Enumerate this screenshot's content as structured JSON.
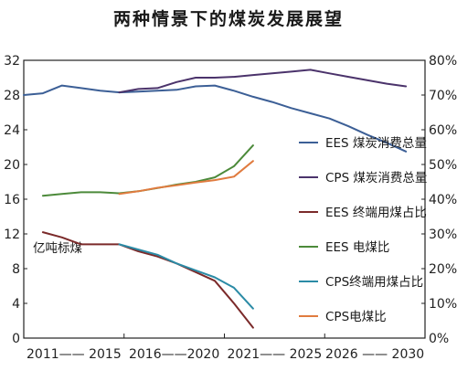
{
  "chart_data": {
    "type": "line",
    "title": "两种情景下的煤炭发展展望",
    "ylabel": "亿吨标煤",
    "y_left_lim": [
      0,
      32
    ],
    "y_right_lim": [
      0,
      80
    ],
    "y_left_ticks": [
      "0",
      "4",
      "8",
      "12",
      "16",
      "20",
      "24",
      "28",
      "32"
    ],
    "y_right_ticks": [
      "0%",
      "10%",
      "20%",
      "30%",
      "40%",
      "50%",
      "60%",
      "70%",
      "80%"
    ],
    "x_ticks": [
      "2011—— 2015",
      "2016——2020",
      "2021—— 2025",
      "2026 —— 2030"
    ],
    "x_range": [
      2010,
      2031
    ],
    "grid": false,
    "legend_position": "right",
    "series": [
      {
        "name": "EES 煤炭消费总量",
        "axis": "left",
        "color": "#3c5f96",
        "x": [
          2010,
          2011,
          2012,
          2013,
          2014,
          2015,
          2016,
          2017,
          2018,
          2019,
          2020,
          2021,
          2022,
          2023,
          2024,
          2025,
          2026,
          2027,
          2028,
          2029,
          2030
        ],
        "values": [
          28.0,
          28.2,
          29.1,
          28.8,
          28.5,
          28.3,
          28.4,
          28.5,
          28.6,
          29.0,
          29.1,
          28.5,
          27.8,
          27.2,
          26.5,
          25.9,
          25.3,
          24.4,
          23.4,
          22.5,
          21.5
        ]
      },
      {
        "name": "CPS 煤炭消费总量",
        "axis": "left",
        "color": "#4b336b",
        "x": [
          2015,
          2016,
          2017,
          2018,
          2019,
          2020,
          2021,
          2022,
          2023,
          2024,
          2025,
          2026,
          2027,
          2028,
          2029,
          2030
        ],
        "values": [
          28.3,
          28.7,
          28.8,
          29.5,
          30.0,
          30.0,
          30.1,
          30.3,
          30.5,
          30.7,
          30.9,
          30.5,
          30.1,
          29.7,
          29.3,
          29.0
        ]
      },
      {
        "name": "EES 终端用煤占比",
        "axis": "right",
        "color": "#7b2a2a",
        "x": [
          2011,
          2012,
          2013,
          2014,
          2015,
          2016,
          2017,
          2018,
          2019,
          2020,
          2021,
          2022
        ],
        "values": [
          30.5,
          29.0,
          27.0,
          27.0,
          27.0,
          25.0,
          23.5,
          21.5,
          19.0,
          16.5,
          10.0,
          3.0
        ]
      },
      {
        "name": "EES 电煤比",
        "axis": "right",
        "color": "#4c8a3a",
        "x": [
          2011,
          2012,
          2013,
          2014,
          2015,
          2016,
          2017,
          2018,
          2019,
          2020,
          2021,
          2022
        ],
        "values": [
          41.0,
          41.5,
          42.0,
          42.0,
          41.7,
          42.3,
          43.2,
          44.2,
          45.0,
          46.3,
          49.5,
          55.5
        ]
      },
      {
        "name": "CPS终端用煤占比",
        "axis": "right",
        "color": "#2b8ba6",
        "x": [
          2015,
          2016,
          2017,
          2018,
          2019,
          2020,
          2021,
          2022
        ],
        "values": [
          27.0,
          25.5,
          24.0,
          21.5,
          19.5,
          17.5,
          14.5,
          8.5
        ]
      },
      {
        "name": "CPS电煤比",
        "axis": "right",
        "color": "#e07b3f",
        "x": [
          2015,
          2016,
          2017,
          2018,
          2019,
          2020,
          2021,
          2022
        ],
        "values": [
          41.5,
          42.3,
          43.3,
          44.0,
          44.8,
          45.5,
          46.5,
          51.0
        ]
      }
    ]
  }
}
